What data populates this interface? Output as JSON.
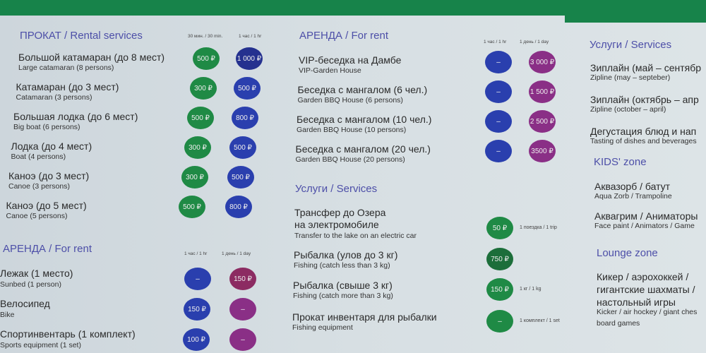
{
  "colors": {
    "green": "#1f8a45",
    "blue": "#2a3fae",
    "purple": "#8a2f86",
    "heading": "#4d4fa8"
  },
  "rental": {
    "title": "ПРОКАТ / Rental services",
    "col1": "30 мин. / 30 min.",
    "col2": "1 час / 1 hr",
    "items": [
      {
        "ru": "Большой катамаран (до 8 мест)",
        "en": "Large catamaran (8 persons)",
        "p1": "500 ₽",
        "p2": "1 000 ₽"
      },
      {
        "ru": "Катамаран (до 3 мест)",
        "en": "Catamaran (3 persons)",
        "p1": "300 ₽",
        "p2": "500 ₽"
      },
      {
        "ru": "Большая лодка (до 6 мест)",
        "en": "Big boat (6 persons)",
        "p1": "500 ₽",
        "p2": "800 ₽"
      },
      {
        "ru": "Лодка (до 4 мест)",
        "en": "Boat (4 persons)",
        "p1": "300 ₽",
        "p2": "500 ₽"
      },
      {
        "ru": "Каноэ (до 3 мест)",
        "en": "Canoe (3 persons)",
        "p1": "300 ₽",
        "p2": "500 ₽"
      },
      {
        "ru": "Каноэ (до 5 мест)",
        "en": "Canoe (5 persons)",
        "p1": "500 ₽",
        "p2": "800 ₽"
      }
    ]
  },
  "rent_left": {
    "title": "АРЕНДА / For rent",
    "col1": "1 час / 1 hr",
    "col2": "1 день / 1 day",
    "items": [
      {
        "ru": "Лежак (1 место)",
        "en": "Sunbed (1 person)",
        "p1": "–",
        "p2": "150 ₽"
      },
      {
        "ru": "Велосипед",
        "en": "Bike",
        "p1": "150 ₽",
        "p2": "–"
      },
      {
        "ru": "Спортинвентарь (1 комплект)",
        "en": "Sports equipment (1 set)",
        "p1": "100 ₽",
        "p2": "–"
      }
    ]
  },
  "rent_mid": {
    "title": "АРЕНДА / For rent",
    "col1": "1 час / 1 hr",
    "col2": "1 день / 1 day",
    "items": [
      {
        "ru": "VIP-беседка на Дамбе",
        "en": "VIP-Garden House",
        "p1": "–",
        "p2": "3 000 ₽"
      },
      {
        "ru": "Беседка с мангалом (6 чел.)",
        "en": "Garden BBQ House (6 persons)",
        "p1": "–",
        "p2": "1 500 ₽"
      },
      {
        "ru": "Беседка с мангалом (10 чел.)",
        "en": "Garden BBQ House (10 persons)",
        "p1": "–",
        "p2": "2 500 ₽"
      },
      {
        "ru": "Беседка с мангалом (20 чел.)",
        "en": "Garden BBQ House (20 persons)",
        "p1": "–",
        "p2": "3500 ₽"
      }
    ]
  },
  "services_mid": {
    "title": "Услуги / Services",
    "items": [
      {
        "ru1": "Трансфер до Озера",
        "ru": "на электромобиле",
        "en": "Transfer to the lake on an electric car",
        "p1": "50 ₽",
        "note": "1 поездка / 1 trip"
      },
      {
        "ru": "Рыбалка (улов до 3 кг)",
        "en": "Fishing (catch less than 3 kg)",
        "p1": "750 ₽",
        "note": ""
      },
      {
        "ru": "Рыбалка (свыше 3 кг)",
        "en": "Fishing (catch more than 3 kg)",
        "p1": "150 ₽",
        "note": "1 кг / 1 kg"
      },
      {
        "ru": "Прокат инвентаря для рыбалки",
        "en": "Fishing equipment",
        "p1": "–",
        "note": "1 комплект / 1 set"
      }
    ]
  },
  "right": {
    "services_title": "Услуги / Services",
    "services": [
      {
        "ru": "Зиплайн (май – сентябр",
        "en": "Zipline (may – septeber)"
      },
      {
        "ru": "Зиплайн (октябрь – апр",
        "en": "Zipline (october – april)"
      },
      {
        "ru": "Дегустация блюд и нап",
        "en": "Tasting of dishes and beverages"
      }
    ],
    "kids_title": "KIDS' zone",
    "kids": [
      {
        "ru": "Аквазорб / батут",
        "en": "Aqua Zorb / Trampoline"
      },
      {
        "ru": "Аквагрим / Аниматоры",
        "en": "Face paint / Animators / Game"
      }
    ],
    "lounge_title": "Lounge zone",
    "lounge": {
      "ru1": "Кикер / аэрохоккей /",
      "ru2": "гигантские шахматы /",
      "ru3": "настольный игры",
      "en1": "Kicker / air hockey / giant ches",
      "en2": "board games"
    }
  }
}
